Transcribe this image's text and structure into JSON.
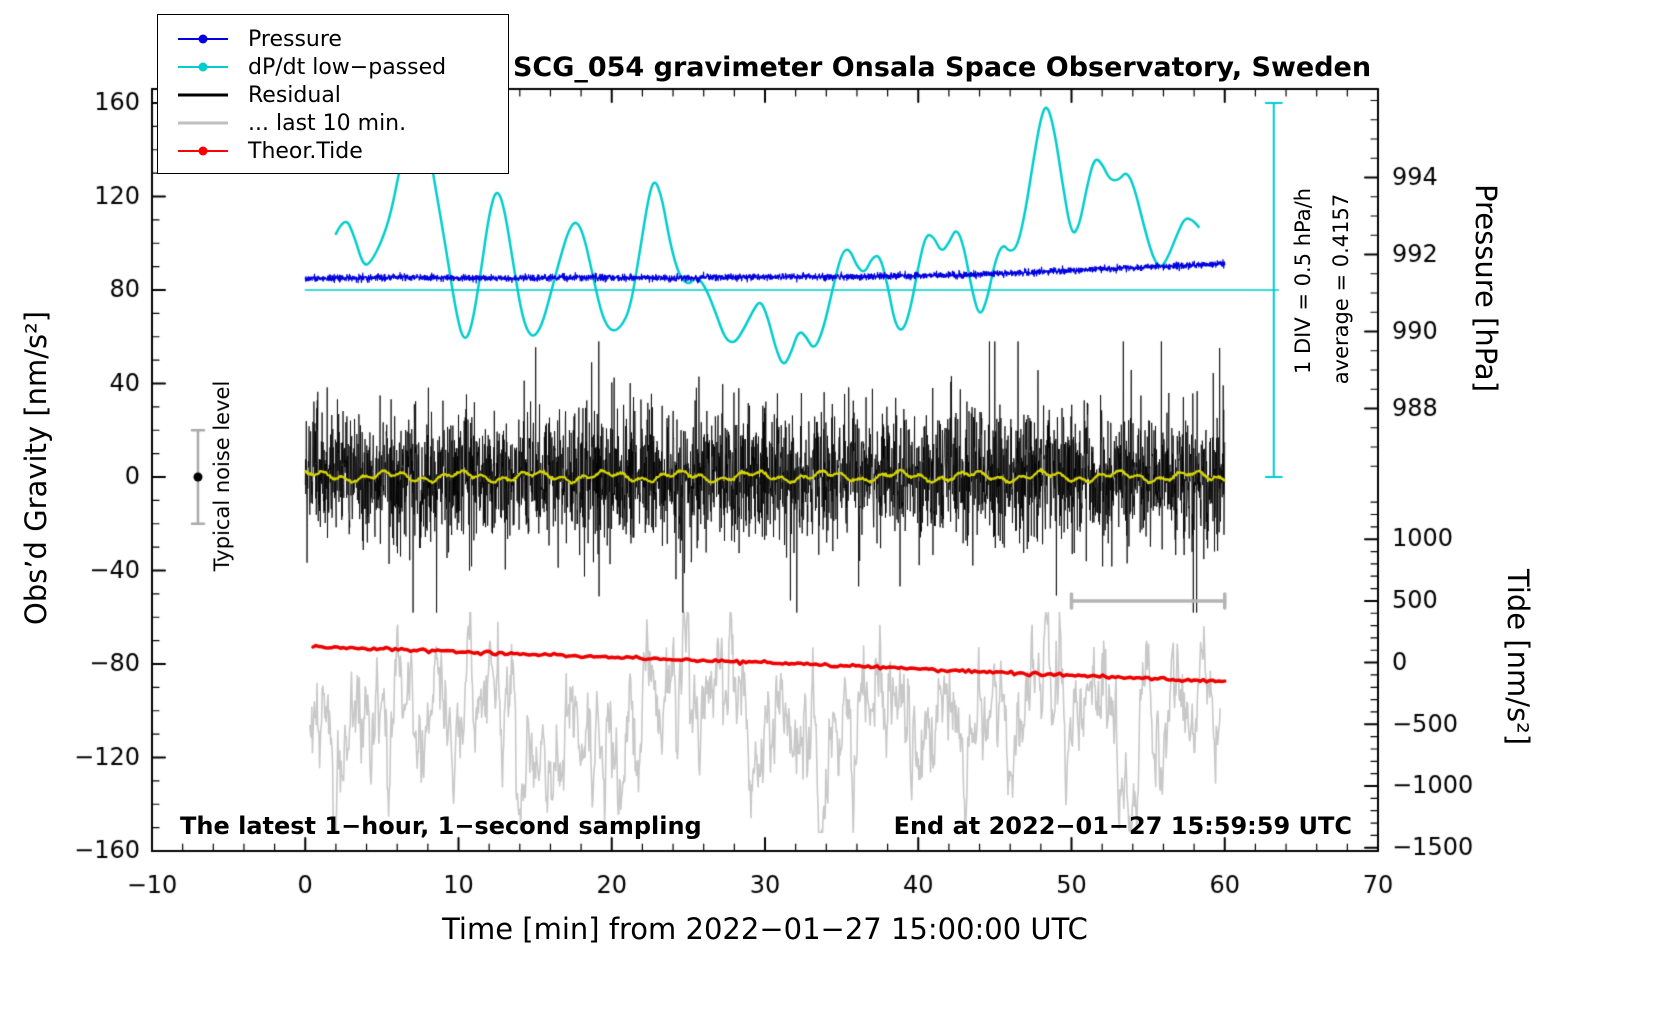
{
  "legend": {
    "items": [
      {
        "label": "Pressure",
        "color": "#0000e0",
        "marker": true,
        "lineWidth": 2
      },
      {
        "label": "dP/dt low−passed",
        "color": "#00cccc",
        "marker": true,
        "lineWidth": 2
      },
      {
        "label": "Residual",
        "color": "#000000",
        "marker": false,
        "lineWidth": 3
      },
      {
        "label": "... last 10 min.",
        "color": "#bfbfbf",
        "marker": false,
        "lineWidth": 3
      },
      {
        "label": "Theor.Tide",
        "color": "#ff0000",
        "marker": true,
        "lineWidth": 2
      }
    ]
  },
  "annotations": {
    "div_scale": "1 DIV = 0.5 hPa/h",
    "average": "average = 0.4157",
    "noise_label": "Typical noise level",
    "sampling_note": "The latest 1−hour, 1−second sampling",
    "end_note": "End at 2022−01−27 15:59:59 UTC"
  },
  "chart_data": {
    "type": "line",
    "title": "SCG_054 gravimeter Onsala Space Observatory, Sweden",
    "xlabel": "Time [min] from 2022−01−27 15:00:00 UTC",
    "ylabel": "Obs’d Gravity [nm/s²]",
    "ylabel_right_pressure": "Pressure [hPa]",
    "ylabel_right_tide": "Tide [nm/s²]",
    "xlim": [
      -10,
      70
    ],
    "ylim": [
      -160,
      166
    ],
    "x_major_ticks": [
      -10,
      0,
      10,
      20,
      30,
      40,
      50,
      60,
      70
    ],
    "x_minor_step": 2,
    "y_major_ticks": [
      -160,
      -120,
      -80,
      -40,
      0,
      40,
      80,
      120,
      160
    ],
    "y_minor_step": 10,
    "pressure_axis": {
      "ticks": [
        988,
        990,
        992,
        994
      ],
      "minor_step": 0.5,
      "gravity_at_992": 95.2,
      "gravity_per_hpa": 16.47
    },
    "tide_axis": {
      "ticks": [
        1000,
        500,
        0,
        -500,
        -1000,
        -1500
      ],
      "minor_step": 100,
      "gravity_at_0": -79.4,
      "gravity_per_unit": 0.0528
    },
    "series": [
      {
        "name": "dP/dt low-passed",
        "kind": "smooth-line",
        "color": "#00cccc",
        "lineWidth": 2.5,
        "points": [
          [
            2,
            104
          ],
          [
            2.6,
            112
          ],
          [
            3.2,
            103
          ],
          [
            3.8,
            90
          ],
          [
            4.3,
            92
          ],
          [
            5,
            101
          ],
          [
            5.6,
            113
          ],
          [
            6.2,
            133
          ],
          [
            6.8,
            149
          ],
          [
            7.4,
            152
          ],
          [
            8,
            143
          ],
          [
            8.6,
            120
          ],
          [
            9.2,
            97
          ],
          [
            9.8,
            72
          ],
          [
            10.3,
            58
          ],
          [
            10.8,
            62
          ],
          [
            11.4,
            85
          ],
          [
            12,
            113
          ],
          [
            12.5,
            124
          ],
          [
            13,
            115
          ],
          [
            13.6,
            90
          ],
          [
            14.2,
            67
          ],
          [
            14.8,
            59
          ],
          [
            15.4,
            64
          ],
          [
            16,
            78
          ],
          [
            16.6,
            93
          ],
          [
            17.2,
            106
          ],
          [
            17.7,
            110
          ],
          [
            18.2,
            103
          ],
          [
            18.8,
            85
          ],
          [
            19.4,
            68
          ],
          [
            20,
            62
          ],
          [
            20.6,
            64
          ],
          [
            21.2,
            72
          ],
          [
            21.8,
            95
          ],
          [
            22.4,
            120
          ],
          [
            22.8,
            128
          ],
          [
            23.3,
            119
          ],
          [
            23.8,
            100
          ],
          [
            24.4,
            86
          ],
          [
            25,
            82
          ],
          [
            25.6,
            86
          ],
          [
            26.2,
            80
          ],
          [
            26.8,
            70
          ],
          [
            27.4,
            59
          ],
          [
            28,
            57
          ],
          [
            28.6,
            63
          ],
          [
            29.2,
            71
          ],
          [
            29.7,
            76
          ],
          [
            30.2,
            68
          ],
          [
            30.7,
            55
          ],
          [
            31.2,
            47
          ],
          [
            31.7,
            53
          ],
          [
            32.2,
            63
          ],
          [
            32.7,
            60
          ],
          [
            33.2,
            54
          ],
          [
            33.8,
            63
          ],
          [
            34.4,
            80
          ],
          [
            35,
            96
          ],
          [
            35.5,
            98
          ],
          [
            36,
            90
          ],
          [
            36.5,
            87
          ],
          [
            37,
            94
          ],
          [
            37.5,
            95
          ],
          [
            38,
            82
          ],
          [
            38.5,
            65
          ],
          [
            39,
            62
          ],
          [
            39.5,
            72
          ],
          [
            40,
            90
          ],
          [
            40.5,
            104
          ],
          [
            41,
            103
          ],
          [
            41.5,
            96
          ],
          [
            42,
            100
          ],
          [
            42.5,
            107
          ],
          [
            43,
            98
          ],
          [
            43.5,
            80
          ],
          [
            44,
            68
          ],
          [
            44.5,
            76
          ],
          [
            45,
            92
          ],
          [
            45.5,
            100
          ],
          [
            46,
            96
          ],
          [
            46.5,
            99
          ],
          [
            47,
            114
          ],
          [
            47.5,
            135
          ],
          [
            48,
            154
          ],
          [
            48.4,
            160
          ],
          [
            48.9,
            148
          ],
          [
            49.4,
            126
          ],
          [
            50,
            103
          ],
          [
            50.5,
            107
          ],
          [
            51,
            124
          ],
          [
            51.5,
            137
          ],
          [
            52,
            134
          ],
          [
            52.5,
            127
          ],
          [
            53.1,
            127
          ],
          [
            53.6,
            131
          ],
          [
            54.1,
            124
          ],
          [
            54.7,
            108
          ],
          [
            55.3,
            94
          ],
          [
            55.8,
            89
          ],
          [
            56.3,
            94
          ],
          [
            56.9,
            104
          ],
          [
            57.4,
            111
          ],
          [
            57.9,
            110
          ],
          [
            58.3,
            107
          ]
        ]
      },
      {
        "name": "Pressure",
        "kind": "noisy-line",
        "color": "#0000e0",
        "lineWidth": 1.2,
        "anchors": [
          [
            0,
            85
          ],
          [
            6,
            85.4
          ],
          [
            12,
            85.1
          ],
          [
            18,
            85.3
          ],
          [
            24,
            85.2
          ],
          [
            30,
            85.6
          ],
          [
            36,
            85.7
          ],
          [
            40,
            86.1
          ],
          [
            44,
            86.7
          ],
          [
            48,
            87.7
          ],
          [
            52,
            89.0
          ],
          [
            56,
            90.1
          ],
          [
            60,
            91.2
          ]
        ],
        "noise_std": 0.7,
        "points": 3600
      },
      {
        "name": "Residual last 10 min",
        "kind": "ar-noise",
        "color": "#c8c8c8",
        "lineWidth": 1.6,
        "center": -104,
        "phi": 0.88,
        "sigma": 9,
        "clip_low": -152,
        "clip_high": -58,
        "x_start": 0.3,
        "x_end": 59.7,
        "points": 1400
      },
      {
        "name": "Theor.Tide",
        "kind": "noisy-line",
        "color": "#ee0000",
        "lineWidth": 3.5,
        "anchors": [
          [
            0.5,
            -72.5
          ],
          [
            30,
            -79.5
          ],
          [
            60,
            -87.5
          ]
        ],
        "noise_std": 0.35,
        "points": 300
      },
      {
        "name": "Residual",
        "kind": "noise-band",
        "color": "#000000",
        "lineWidth": 0.8,
        "center": 0,
        "std": 14,
        "tail_prob": 0.02,
        "tail_mult": 2.6,
        "clip": 58,
        "x_start": 0,
        "x_end": 60,
        "points": 3600
      },
      {
        "name": "Residual low-passed",
        "kind": "wavy-line",
        "color": "#d4d400",
        "lineWidth": 2.2,
        "center": 0.2,
        "amp1": 1.6,
        "f1": 0.21,
        "amp2": 1.0,
        "f2": 0.77,
        "noise": 0.25,
        "x_start": 0,
        "x_end": 60,
        "points": 1200
      }
    ],
    "reference": {
      "cyan_zero_line": {
        "y": 80,
        "x1": 0,
        "x2": 63.5,
        "color": "#00cccc"
      },
      "cyan_scale_bar": {
        "x": 63.2,
        "y1": 0,
        "y2": 160,
        "color": "#00cccc"
      },
      "gray_span_bar": {
        "y": -53,
        "x1": 50,
        "x2": 60,
        "color": "#b4b4b4"
      },
      "noise_errorbar": {
        "x": -7,
        "y": 0,
        "half": 20,
        "color": "#aaaaaa"
      }
    }
  }
}
